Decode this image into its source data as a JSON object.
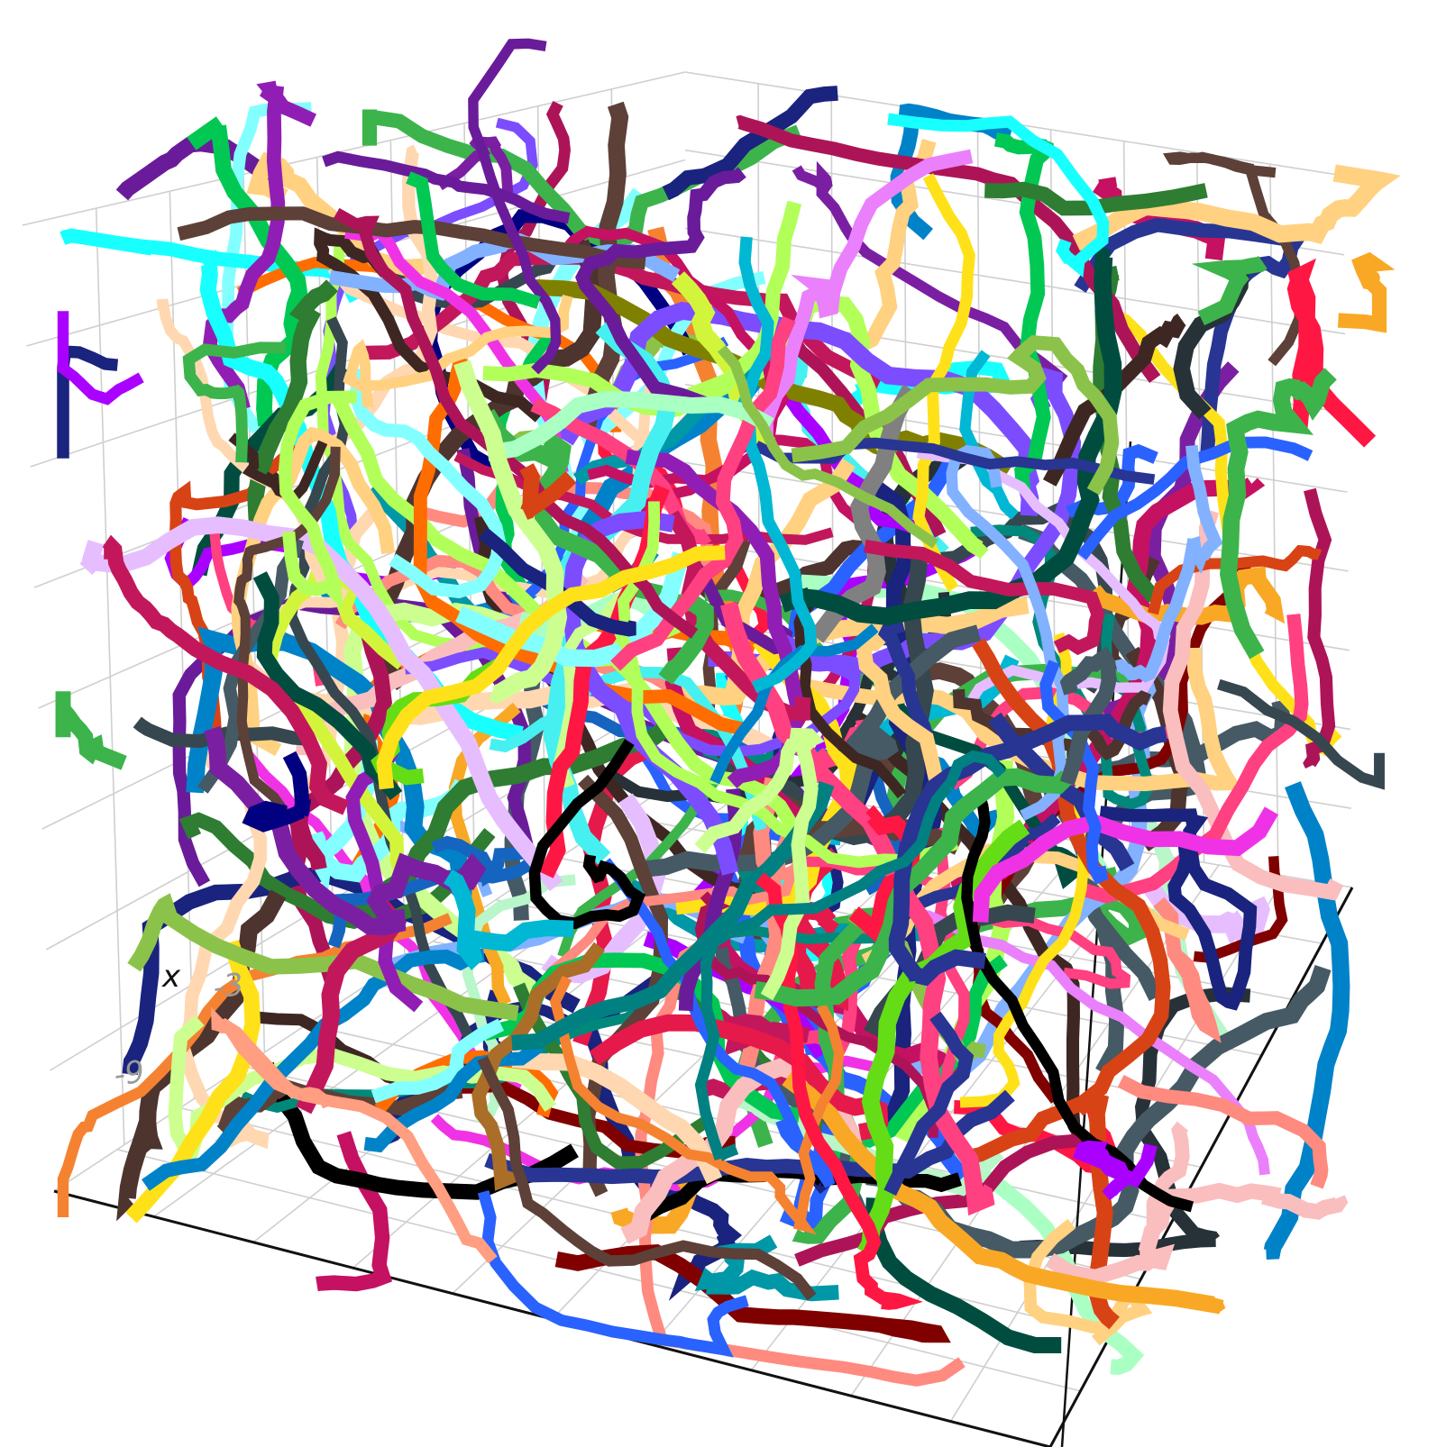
{
  "chart_data": {
    "type": "line3d",
    "title": "",
    "axes": {
      "x": {
        "label": "x",
        "ticks": [
          "-9",
          "-3"
        ]
      },
      "y": {
        "label": "",
        "ticks": []
      },
      "z": {
        "label": "",
        "ticks": []
      }
    },
    "grid": true,
    "legend": "none",
    "background": "#ffffff",
    "grid_color": "#cfcfcf",
    "axis_color": "#111111",
    "series_count": 320,
    "random_seed": 20240611,
    "palette": [
      "#e6194b",
      "#3cb44b",
      "#ffe119",
      "#0082c8",
      "#f58231",
      "#911eb4",
      "#46f0f0",
      "#f032e6",
      "#d2f53c",
      "#fabebe",
      "#008080",
      "#e6beff",
      "#aa6e28",
      "#800000",
      "#aaffc3",
      "#808000",
      "#ffd8b1",
      "#000080",
      "#808080",
      "#000000",
      "#ff1744",
      "#00c853",
      "#2962ff",
      "#ff6d00",
      "#aa00ff",
      "#00b8d4",
      "#64dd17",
      "#c51162",
      "#1a237e",
      "#004d40",
      "#3e2723",
      "#263238",
      "#ff8a80",
      "#82b1ff",
      "#b9f6ca",
      "#ffd180",
      "#ea80fc",
      "#84ffff",
      "#ccff90",
      "#ff9e80",
      "#5d4037",
      "#455a64",
      "#7b1fa2",
      "#c2185b",
      "#00897b",
      "#f9a825",
      "#6a1b9a",
      "#283593",
      "#1565c0",
      "#2e7d32",
      "#ad1457",
      "#d84315",
      "#4e342e",
      "#37474f",
      "#0097a7",
      "#8bc34a",
      "#ff4081",
      "#7c4dff",
      "#18ffff",
      "#b2ff59"
    ]
  }
}
